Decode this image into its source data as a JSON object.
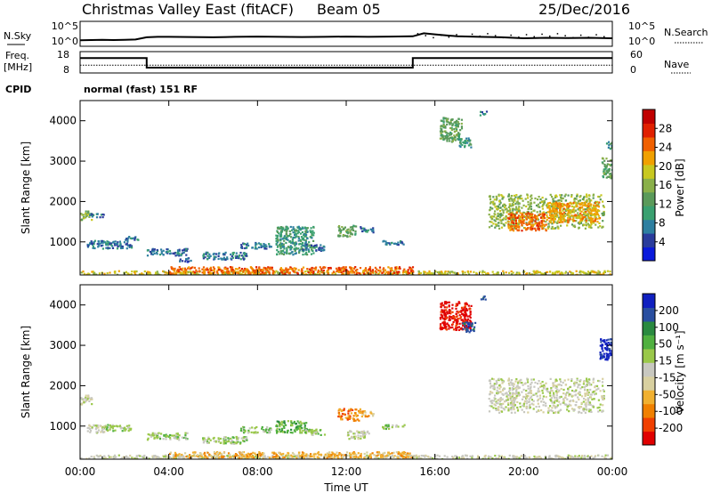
{
  "header": {
    "station": "Christmas Valley East (fitACF)",
    "beam": "Beam 05",
    "date": "25/Dec/2016"
  },
  "top_panels": {
    "nsky_label": "N.Sky",
    "nsearch_label": "N.Search",
    "nsky_ticks": [
      "10^5",
      "10^0"
    ],
    "nsearch_ticks": [
      "10^5",
      "10^0"
    ],
    "freq_label_1": "Freq.",
    "freq_label_2": "[MHz]",
    "freq_ticks": [
      "18",
      "8"
    ],
    "nave_label": "Nave",
    "nave_ticks": [
      "60",
      "0"
    ],
    "cpid_label": "CPID",
    "cpid_text": "normal (fast) 151 RF"
  },
  "colors": {
    "power": [
      "#0a1adb",
      "#2a3c9c",
      "#2e7fa0",
      "#3aa070",
      "#5a9a5a",
      "#8ab04a",
      "#c8c820",
      "#f0a000",
      "#f06000",
      "#e02000",
      "#c00000"
    ],
    "velocity": [
      "#e00000",
      "#f04000",
      "#f08000",
      "#f0b030",
      "#d8d0a0",
      "#c8c8c0",
      "#9ac84a",
      "#50b040",
      "#2a8a40",
      "#2a4fa0",
      "#1020c0"
    ],
    "ground_scatter": "#c0c0b8"
  },
  "chart_data": [
    {
      "type": "line",
      "name_panel": "sounding-counts",
      "x_unit": "hours UT",
      "x": [
        0,
        0.5,
        1,
        1.5,
        2,
        2.5,
        3,
        3.5,
        4,
        5,
        6,
        7,
        8,
        9,
        10,
        11,
        12,
        13,
        14,
        15,
        15.5,
        16,
        16.5,
        17,
        18,
        19,
        20,
        21,
        22,
        23,
        24
      ],
      "series": [
        {
          "values_log10": [
            1.2,
            1.25,
            1.3,
            1.25,
            1.3,
            1.35,
            1.8,
            1.9,
            1.9,
            1.85,
            1.8,
            1.9,
            1.95,
            1.9,
            1.85,
            1.9,
            1.95,
            1.9,
            1.95,
            2.0,
            2.6,
            2.4,
            2.2,
            2.0,
            1.9,
            1.8,
            1.6,
            1.7,
            1.65,
            1.7,
            1.6
          ]
        }
      ],
      "ylim_log10": [
        0,
        5
      ]
    },
    {
      "type": "line",
      "name_panel": "frequency-nave",
      "x_unit": "hours UT",
      "series": [
        {
          "label": "Freq.",
          "x": [
            0,
            3,
            3,
            15,
            15,
            24
          ],
          "values": [
            15.0,
            15.0,
            10.5,
            10.5,
            15.0,
            15.0
          ],
          "ylim": [
            8,
            18
          ]
        },
        {
          "label": "Nave",
          "x": [
            0,
            24
          ],
          "values": [
            22,
            22
          ],
          "ylim": [
            0,
            60
          ]
        }
      ]
    },
    {
      "type": "heatmap",
      "name_panel": "power",
      "xlabel": "",
      "ylabel": "Slant Range [km]",
      "colorbar_label": "Power [dB]",
      "colorbar_ticks": [
        "4",
        "8",
        "12",
        "16",
        "20",
        "24",
        "28"
      ],
      "xlim": [
        0,
        24
      ],
      "ylim": [
        180,
        4500
      ],
      "yticks": [
        "1000",
        "2000",
        "3000",
        "4000"
      ],
      "blobs": [
        {
          "x0": 0.0,
          "x1": 0.5,
          "y0": 1550,
          "y1": 1800,
          "level": 5
        },
        {
          "x0": 0.4,
          "x1": 1.1,
          "y0": 1620,
          "y1": 1720,
          "level": 2
        },
        {
          "x0": 0.3,
          "x1": 2.3,
          "y0": 850,
          "y1": 1050,
          "level": 2
        },
        {
          "x0": 2.0,
          "x1": 2.6,
          "y0": 1050,
          "y1": 1150,
          "level": 2
        },
        {
          "x0": 3.0,
          "x1": 4.8,
          "y0": 680,
          "y1": 850,
          "level": 2
        },
        {
          "x0": 4.4,
          "x1": 5.0,
          "y0": 520,
          "y1": 620,
          "level": 1
        },
        {
          "x0": 5.5,
          "x1": 7.5,
          "y0": 580,
          "y1": 760,
          "level": 2
        },
        {
          "x0": 7.2,
          "x1": 8.6,
          "y0": 850,
          "y1": 1000,
          "level": 2
        },
        {
          "x0": 8.8,
          "x1": 10.5,
          "y0": 700,
          "y1": 1400,
          "level": 3
        },
        {
          "x0": 10.0,
          "x1": 11.0,
          "y0": 800,
          "y1": 950,
          "level": 2
        },
        {
          "x0": 11.6,
          "x1": 12.4,
          "y0": 1150,
          "y1": 1450,
          "level": 4
        },
        {
          "x0": 12.6,
          "x1": 13.2,
          "y0": 1250,
          "y1": 1400,
          "level": 2
        },
        {
          "x0": 13.6,
          "x1": 14.6,
          "y0": 950,
          "y1": 1050,
          "level": 2
        },
        {
          "x0": 16.2,
          "x1": 17.2,
          "y0": 3500,
          "y1": 4100,
          "level": 4
        },
        {
          "x0": 17.0,
          "x1": 17.6,
          "y0": 3350,
          "y1": 3600,
          "level": 3
        },
        {
          "x0": 18.0,
          "x1": 18.3,
          "y0": 4150,
          "y1": 4250,
          "level": 2
        },
        {
          "x0": 23.5,
          "x1": 24.0,
          "y0": 2600,
          "y1": 3100,
          "level": 4
        },
        {
          "x0": 23.7,
          "x1": 24.0,
          "y0": 3300,
          "y1": 3500,
          "level": 3
        },
        {
          "x0": 18.4,
          "x1": 23.6,
          "y0": 1350,
          "y1": 2200,
          "level": 5
        },
        {
          "x0": 19.2,
          "x1": 21.0,
          "y0": 1300,
          "y1": 1750,
          "level": 8
        },
        {
          "x0": 21.0,
          "x1": 23.4,
          "y0": 1500,
          "y1": 2000,
          "level": 7
        },
        {
          "x0": 0.0,
          "x1": 24.0,
          "y0": 180,
          "y1": 300,
          "level": 6
        },
        {
          "x0": 4.0,
          "x1": 15.0,
          "y0": 230,
          "y1": 400,
          "level": 8
        }
      ]
    },
    {
      "type": "heatmap",
      "name_panel": "velocity",
      "xlabel": "Time UT",
      "ylabel": "Slant Range [km]",
      "colorbar_label": "Velocity [m s⁻¹]",
      "colorbar_ticks": [
        "-200",
        "-100",
        "-50",
        "-15",
        "15",
        "50",
        "100",
        "200"
      ],
      "xlim": [
        0,
        24
      ],
      "ylim": [
        180,
        4500
      ],
      "yticks": [
        "1000",
        "2000",
        "3000",
        "4000"
      ],
      "xticks": [
        "00:00",
        "04:00",
        "08:00",
        "12:00",
        "16:00",
        "20:00",
        "00:00"
      ],
      "blobs": [
        {
          "x0": 0.0,
          "x1": 0.5,
          "y0": 1550,
          "y1": 1800,
          "level": 5
        },
        {
          "x0": 0.3,
          "x1": 1.2,
          "y0": 850,
          "y1": 1050,
          "level": 5
        },
        {
          "x0": 1.0,
          "x1": 2.3,
          "y0": 900,
          "y1": 1050,
          "level": 6
        },
        {
          "x0": 3.0,
          "x1": 4.8,
          "y0": 680,
          "y1": 850,
          "level": 6
        },
        {
          "x0": 5.5,
          "x1": 7.5,
          "y0": 580,
          "y1": 760,
          "level": 6
        },
        {
          "x0": 7.2,
          "x1": 8.6,
          "y0": 850,
          "y1": 1000,
          "level": 6
        },
        {
          "x0": 8.8,
          "x1": 10.2,
          "y0": 850,
          "y1": 1150,
          "level": 7
        },
        {
          "x0": 10.0,
          "x1": 11.0,
          "y0": 800,
          "y1": 950,
          "level": 6
        },
        {
          "x0": 11.6,
          "x1": 12.6,
          "y0": 1150,
          "y1": 1450,
          "level": 2
        },
        {
          "x0": 12.6,
          "x1": 13.2,
          "y0": 1250,
          "y1": 1400,
          "level": 3
        },
        {
          "x0": 12.0,
          "x1": 13.0,
          "y0": 700,
          "y1": 900,
          "level": 5
        },
        {
          "x0": 13.6,
          "x1": 14.6,
          "y0": 950,
          "y1": 1050,
          "level": 6
        },
        {
          "x0": 16.2,
          "x1": 17.6,
          "y0": 3400,
          "y1": 4100,
          "level": 0
        },
        {
          "x0": 17.2,
          "x1": 17.8,
          "y0": 3350,
          "y1": 3600,
          "level": 9
        },
        {
          "x0": 18.0,
          "x1": 18.3,
          "y0": 4150,
          "y1": 4250,
          "level": 9
        },
        {
          "x0": 23.4,
          "x1": 24.0,
          "y0": 2650,
          "y1": 3200,
          "level": 10
        },
        {
          "x0": 18.4,
          "x1": 23.6,
          "y0": 1350,
          "y1": 2200,
          "level": 5
        },
        {
          "x0": 0.0,
          "x1": 24.0,
          "y0": 180,
          "y1": 300,
          "level": 5
        },
        {
          "x0": 4.0,
          "x1": 15.0,
          "y0": 230,
          "y1": 380,
          "level": 3
        }
      ]
    }
  ]
}
